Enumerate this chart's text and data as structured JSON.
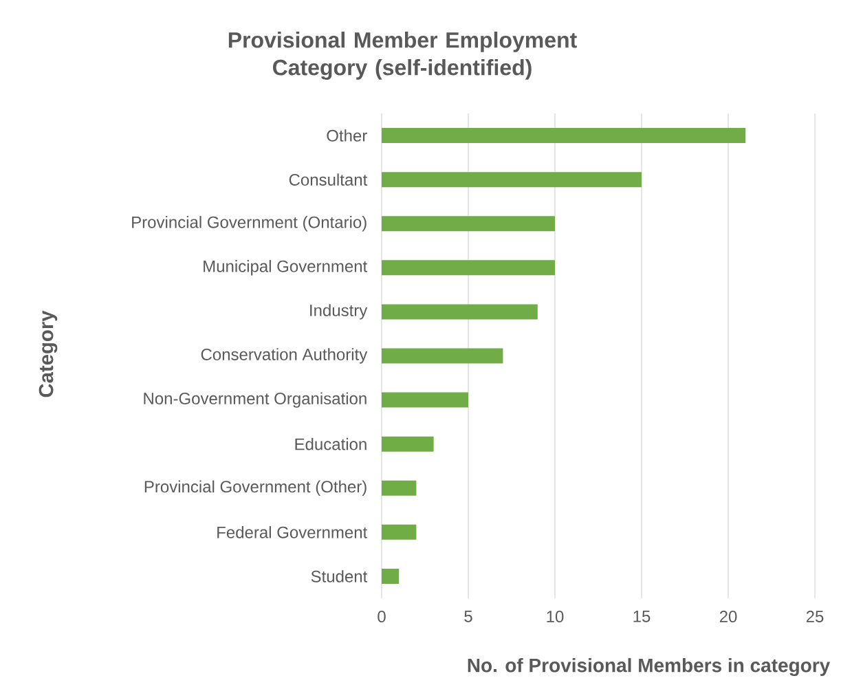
{
  "chart_data": {
    "type": "bar",
    "orientation": "horizontal",
    "title": "Provisional Member Employment Category (self-identified)",
    "xlabel": "No. of Provisional Members in category",
    "ylabel": "Category",
    "categories": [
      "Other",
      "Consultant",
      "Provincial Government (Ontario)",
      "Municipal Government",
      "Industry",
      "Conservation Authority",
      "Non-Government Organisation",
      "Education",
      "Provincial Government (Other)",
      "Federal Government",
      "Student"
    ],
    "values": [
      21,
      15,
      10,
      10,
      9,
      7,
      5,
      3,
      2,
      2,
      1
    ],
    "color": "#70ad47",
    "xlim": [
      0,
      25
    ],
    "xticks": [
      0,
      5,
      10,
      15,
      20,
      25
    ],
    "grid": "x"
  }
}
